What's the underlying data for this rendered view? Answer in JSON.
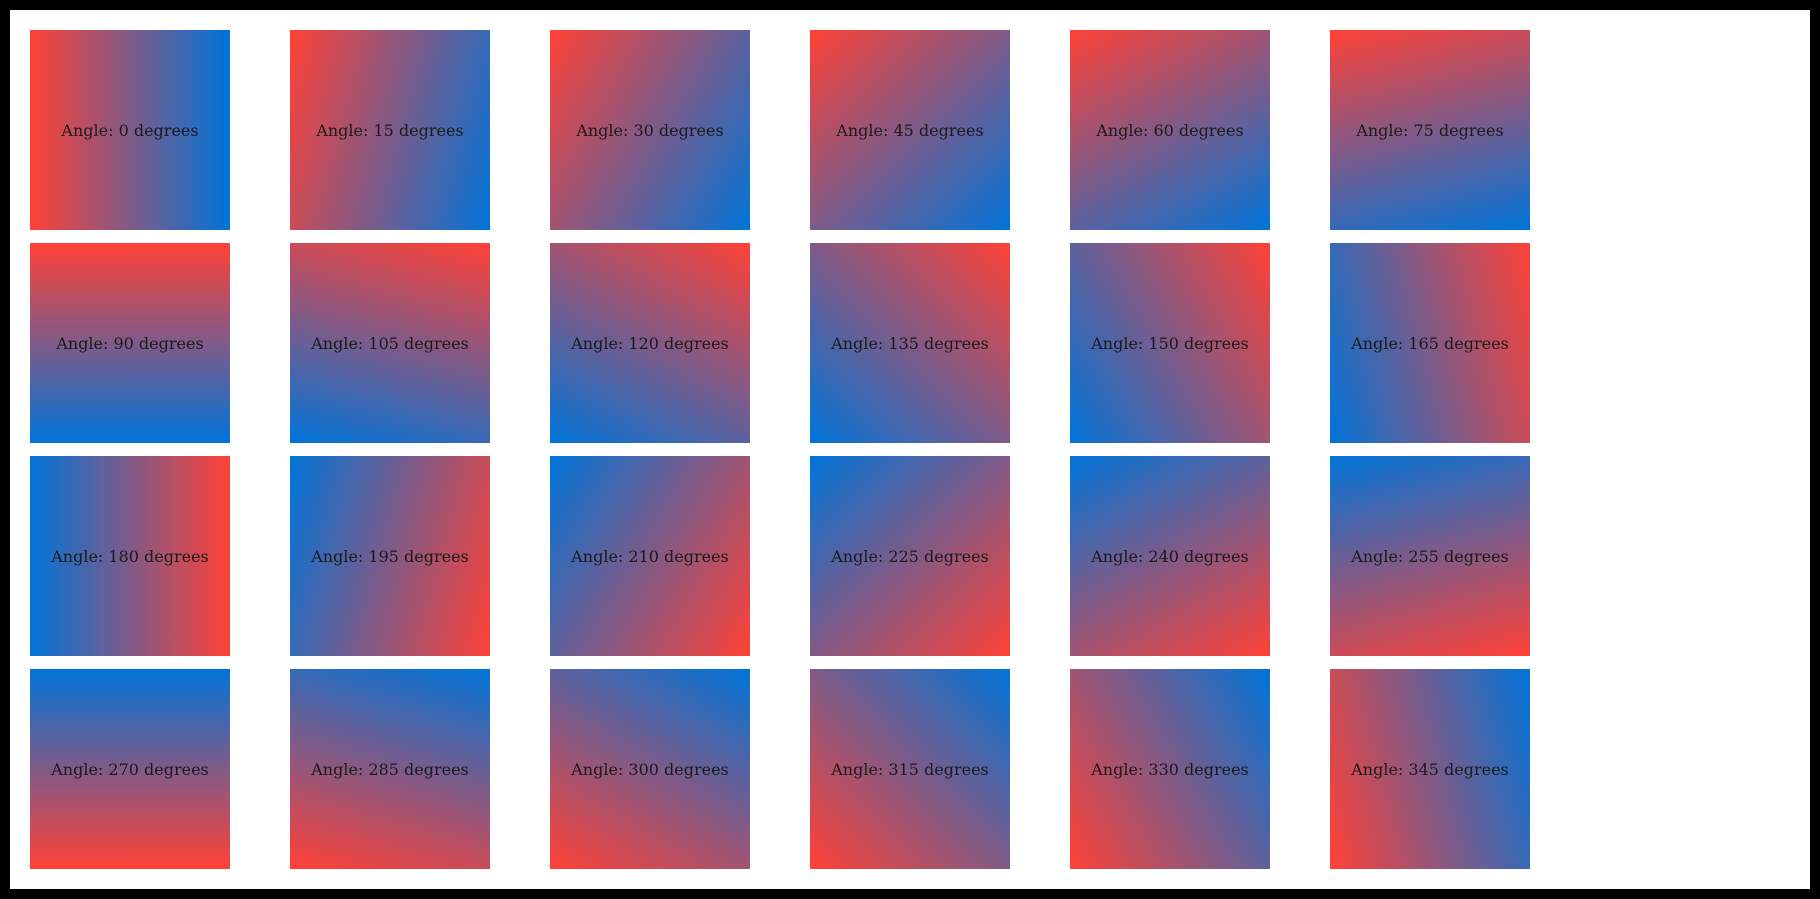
{
  "colors": {
    "start": "#ff4136",
    "end": "#0074d9"
  },
  "tiles": [
    {
      "angle": 0,
      "label": "Angle: 0 degrees"
    },
    {
      "angle": 15,
      "label": "Angle: 15 degrees"
    },
    {
      "angle": 30,
      "label": "Angle: 30 degrees"
    },
    {
      "angle": 45,
      "label": "Angle: 45 degrees"
    },
    {
      "angle": 60,
      "label": "Angle: 60 degrees"
    },
    {
      "angle": 75,
      "label": "Angle: 75 degrees"
    },
    {
      "angle": 90,
      "label": "Angle: 90 degrees"
    },
    {
      "angle": 105,
      "label": "Angle: 105 degrees"
    },
    {
      "angle": 120,
      "label": "Angle: 120 degrees"
    },
    {
      "angle": 135,
      "label": "Angle: 135 degrees"
    },
    {
      "angle": 150,
      "label": "Angle: 150 degrees"
    },
    {
      "angle": 165,
      "label": "Angle: 165 degrees"
    },
    {
      "angle": 180,
      "label": "Angle: 180 degrees"
    },
    {
      "angle": 195,
      "label": "Angle: 195 degrees"
    },
    {
      "angle": 210,
      "label": "Angle: 210 degrees"
    },
    {
      "angle": 225,
      "label": "Angle: 225 degrees"
    },
    {
      "angle": 240,
      "label": "Angle: 240 degrees"
    },
    {
      "angle": 255,
      "label": "Angle: 255 degrees"
    },
    {
      "angle": 270,
      "label": "Angle: 270 degrees"
    },
    {
      "angle": 285,
      "label": "Angle: 285 degrees"
    },
    {
      "angle": 300,
      "label": "Angle: 300 degrees"
    },
    {
      "angle": 315,
      "label": "Angle: 315 degrees"
    },
    {
      "angle": 330,
      "label": "Angle: 330 degrees"
    },
    {
      "angle": 345,
      "label": "Angle: 345 degrees"
    }
  ]
}
